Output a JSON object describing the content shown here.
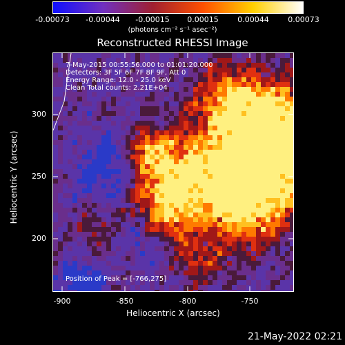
{
  "colorbar": {
    "ticks": [
      "-0.00073",
      "-0.00044",
      "-0.00015",
      "0.00015",
      "0.00044",
      "0.00073"
    ],
    "units": "(photons cm⁻² s⁻¹ asec⁻²)",
    "colors": [
      "#1010ff",
      "#7030c0",
      "#a02030",
      "#ff5000",
      "#ffd000",
      "#ffffff"
    ]
  },
  "title": "Reconstructed RHESSI Image",
  "info": {
    "time": "7-May-2015 00:55:56.000 to 01:01:20.000",
    "detectors": "Detectors: 3F 5F 6F 7F 8F 9F, Att 0",
    "energy": "Energy Range: 12.0 - 25.0 keV",
    "clean": "Clean     Total counts: 2.21E+04"
  },
  "peak": "Position of Peak = [-766,275]",
  "axes": {
    "xlabel": "Heliocentric X (arcsec)",
    "ylabel": "Heliocentric Y (arcsec)",
    "xticks": [
      "-900",
      "-850",
      "-800",
      "-750"
    ],
    "yticks": [
      "300",
      "250",
      "200"
    ]
  },
  "date": "21-May-2022 02:21"
}
